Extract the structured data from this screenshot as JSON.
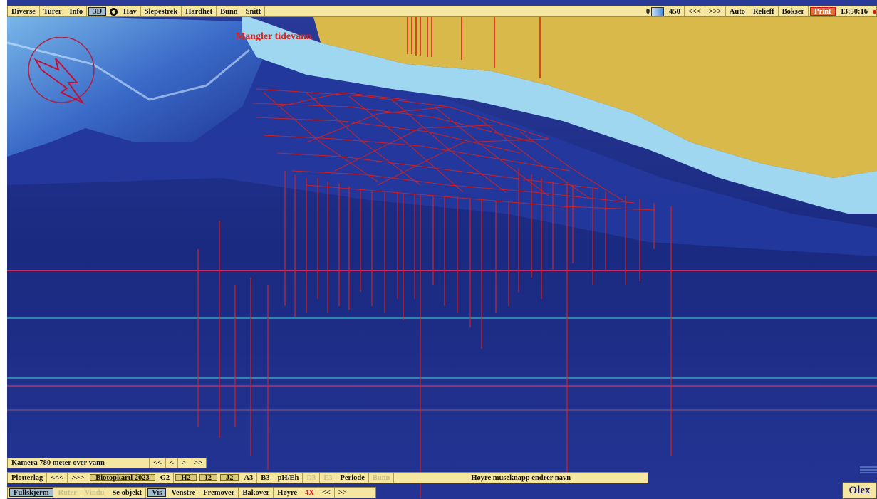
{
  "top_bar": {
    "left_items": [
      "Diverse",
      "Turer",
      "Info",
      "3D",
      "Hav",
      "Slepestrek",
      "Hardhet",
      "Bunn",
      "Snitt"
    ],
    "selected": "3D",
    "depth_min": "0",
    "depth_max": "450",
    "right_items": [
      "<<<",
      ">>>",
      "Auto",
      "Relieff",
      "Bokser"
    ],
    "print_label": "Print",
    "clock": "13:50:16"
  },
  "map": {
    "warning": "Mangler tidevann",
    "colors": {
      "land": "#d9b94a",
      "shallow": "#9fd6f0",
      "deep": "#1a2a7a",
      "track": "#d8201a",
      "grid_cyan": "#2aa8b8"
    }
  },
  "camera_bar": {
    "label": "Kamera 780 meter over vann",
    "buttons": [
      "<<",
      "<",
      ">",
      ">>"
    ]
  },
  "layer_bar": {
    "label": "Plotterlag",
    "prev": "<<<",
    "next": ">>>",
    "items": [
      "Biotopkartl 2023",
      "G2",
      "H2",
      "I2",
      "J2",
      "A3",
      "B3",
      "pH/Eh",
      "D3",
      "E3",
      "Periode",
      "Bunn",
      "Høyre museknapp endrer navn"
    ]
  },
  "nav_bar": {
    "items": [
      "Fullskjerm",
      "Ruter",
      "Vindu",
      "Se objekt",
      "Vis",
      "Venstre",
      "Fremover",
      "Bakover",
      "Høyre",
      "4X",
      "<<",
      ">>"
    ]
  },
  "logo": "Olex"
}
